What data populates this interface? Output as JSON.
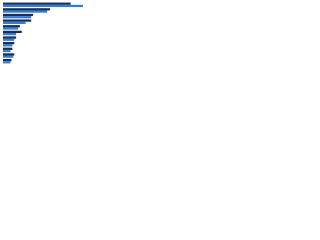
{
  "chart_data": {
    "type": "bar",
    "orientation": "horizontal",
    "categories": [
      null,
      null,
      null,
      null,
      null,
      null,
      null,
      null,
      null,
      null,
      null
    ],
    "series": [
      {
        "color": "#1c2d4f",
        "values": [
          72,
          50,
          32,
          30,
          18,
          20,
          14,
          12,
          10,
          12,
          9
        ]
      },
      {
        "color": "#2f7fd8",
        "values": [
          85,
          47,
          30,
          24,
          16,
          14,
          12,
          10,
          8,
          11,
          8
        ]
      }
    ],
    "xlim": [
      0,
      100
    ]
  }
}
